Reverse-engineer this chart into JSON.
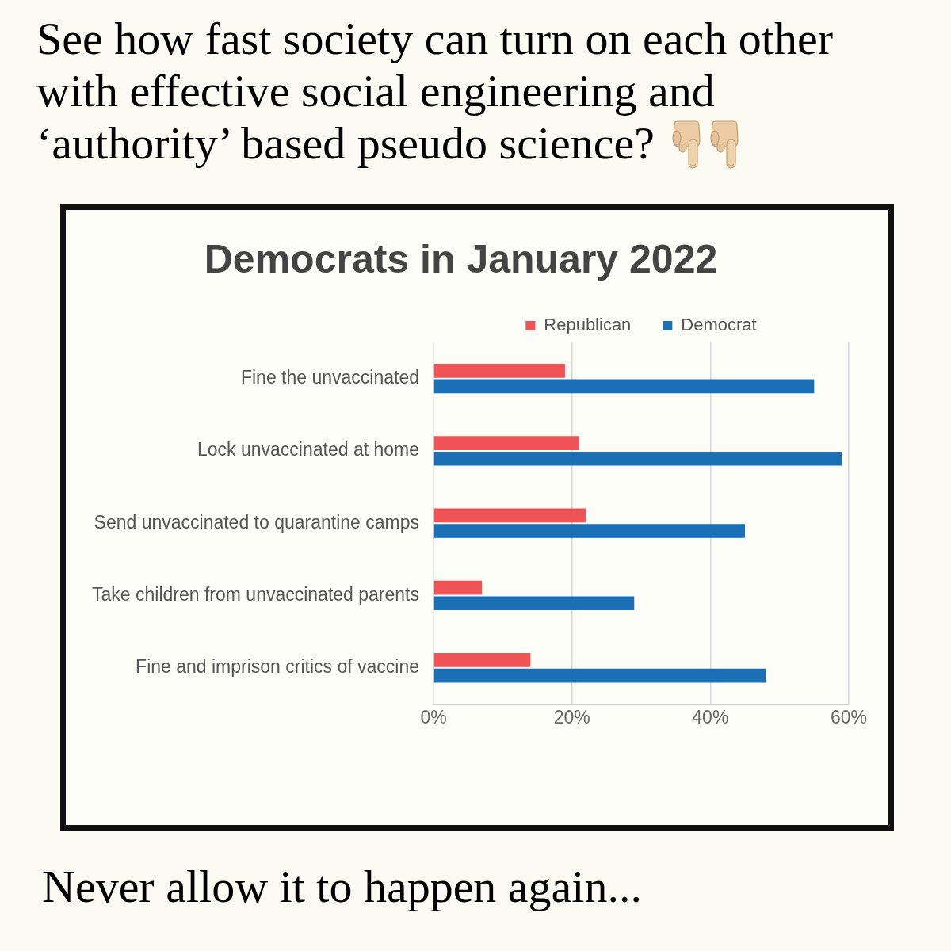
{
  "chart_data": {
    "type": "bar",
    "orientation": "horizontal",
    "title": "Democrats in January 2022",
    "categories": [
      "Fine the unvaccinated",
      "Lock unvaccinated at home",
      "Send unvaccinated to quarantine camps",
      "Take children from unvaccinated parents",
      "Fine and imprison critics of vaccine"
    ],
    "series": [
      {
        "name": "Republican",
        "color": "#f05355",
        "values": [
          19,
          21,
          22,
          7,
          14
        ]
      },
      {
        "name": "Democrat",
        "color": "#1a6fb5",
        "values": [
          55,
          59,
          45,
          29,
          48
        ]
      }
    ],
    "xlim": [
      0,
      60
    ],
    "xticks": [
      {
        "value": 0,
        "label": "0%"
      },
      {
        "value": 20,
        "label": "20%"
      },
      {
        "value": 40,
        "label": "40%"
      },
      {
        "value": 60,
        "label": "60%"
      }
    ],
    "grid": "x",
    "legend": "top",
    "annotations": [
      "See how fast society can turn on each other with effective social engineering and ‘authority’ based pseudo science?",
      "Never allow it to happen again..."
    ]
  }
}
